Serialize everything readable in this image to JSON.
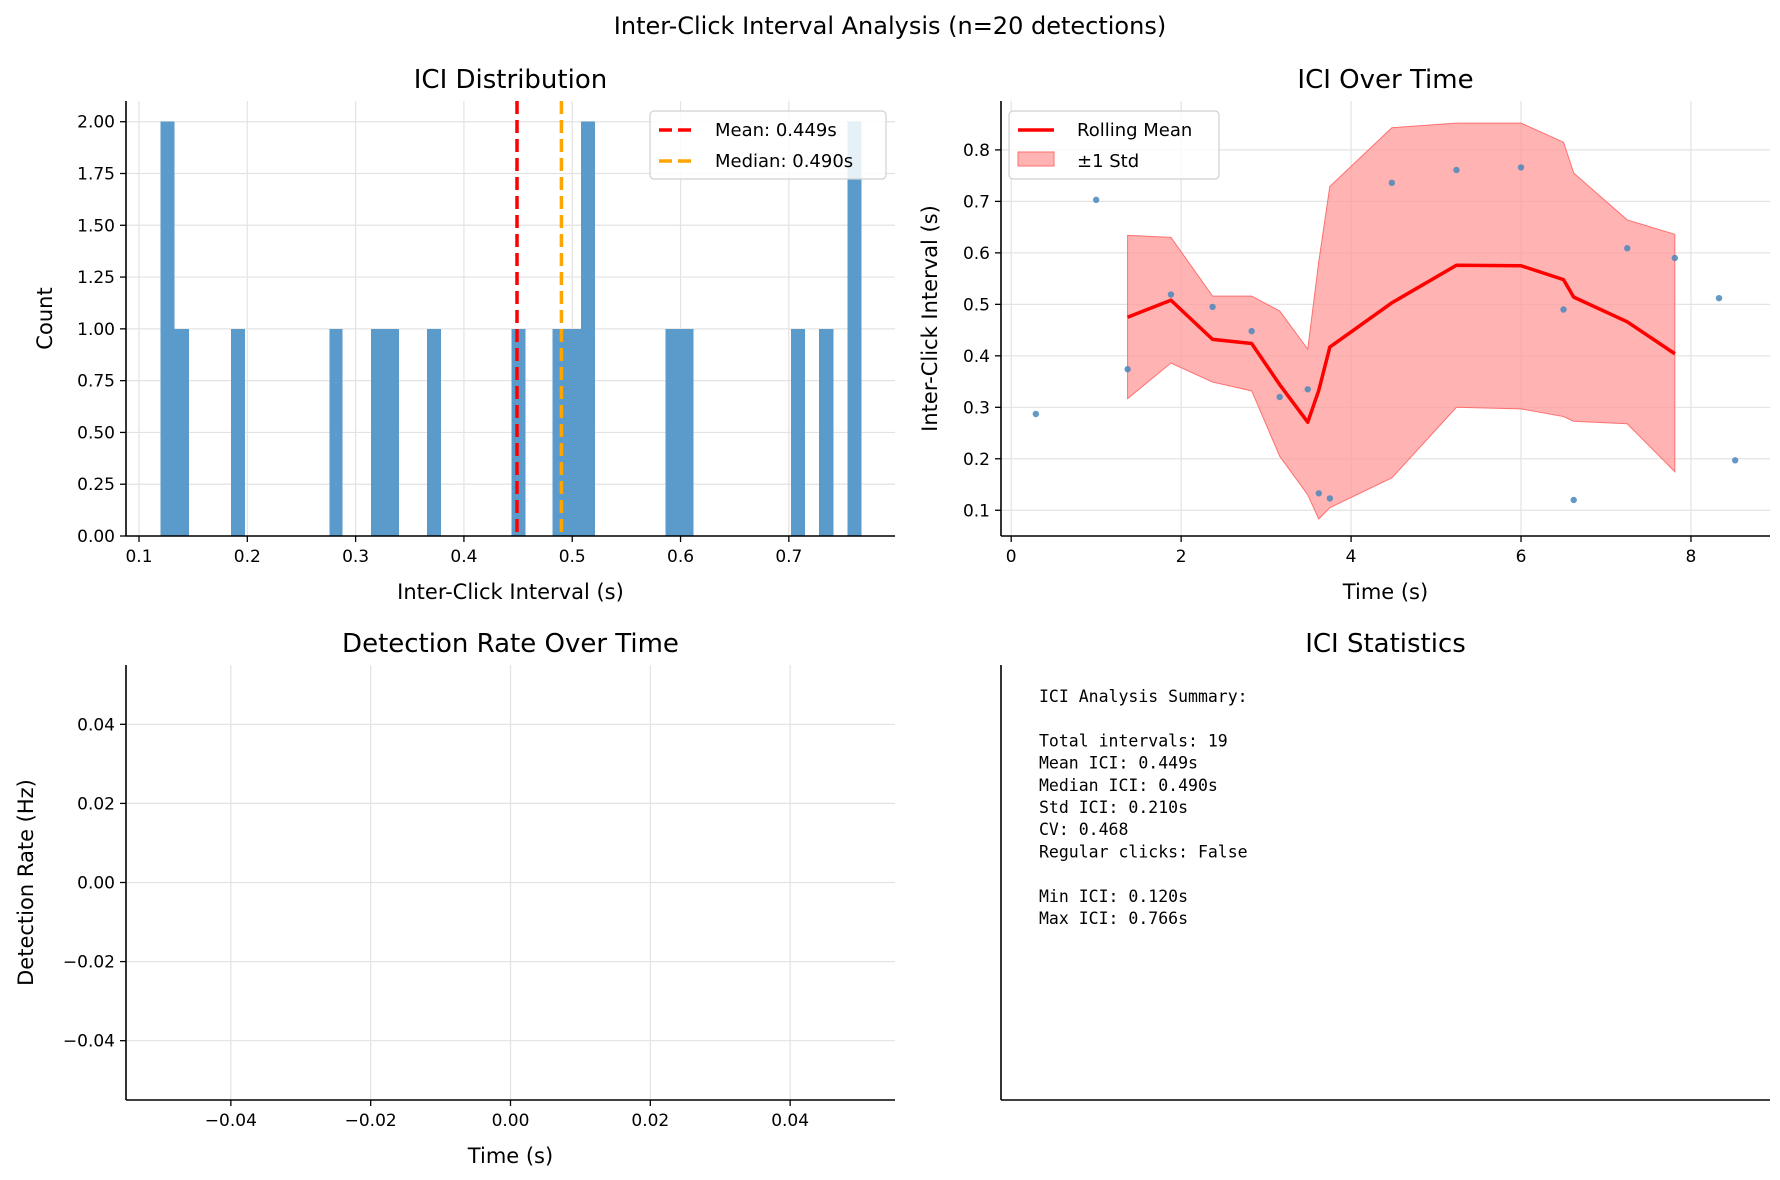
{
  "suptitle": "Inter-Click Interval Analysis (n=20 detections)",
  "chart_data": [
    {
      "type": "bar",
      "title": "ICI Distribution",
      "xlabel": "Inter-Click Interval (s)",
      "ylabel": "Count",
      "xlim": [
        0.088,
        0.798
      ],
      "ylim": [
        0,
        2.1
      ],
      "xticks": [
        0.1,
        0.2,
        0.3,
        0.4,
        0.5,
        0.6,
        0.7
      ],
      "xtick_labels": [
        "0.1",
        "0.2",
        "0.3",
        "0.4",
        "0.5",
        "0.6",
        "0.7"
      ],
      "yticks": [
        0,
        0.25,
        0.5,
        0.75,
        1.0,
        1.25,
        1.5,
        1.75,
        2.0
      ],
      "ytick_labels": [
        "0.00",
        "0.25",
        "0.50",
        "0.75",
        "1.00",
        "1.25",
        "1.50",
        "1.75",
        "2.00"
      ],
      "grid": true,
      "bin_edges": [
        0.12,
        0.133,
        0.146,
        0.159,
        0.172,
        0.185,
        0.198,
        0.211,
        0.224,
        0.237,
        0.25,
        0.263,
        0.276,
        0.288,
        0.301,
        0.314,
        0.327,
        0.34,
        0.353,
        0.366,
        0.379,
        0.392,
        0.405,
        0.418,
        0.431,
        0.444,
        0.457,
        0.469,
        0.482,
        0.495,
        0.508,
        0.521,
        0.534,
        0.547,
        0.56,
        0.573,
        0.586,
        0.599,
        0.612,
        0.625,
        0.637,
        0.65,
        0.663,
        0.676,
        0.689,
        0.702,
        0.715,
        0.728,
        0.741,
        0.754,
        0.767
      ],
      "counts": [
        2,
        1,
        0,
        0,
        0,
        1,
        0,
        0,
        0,
        0,
        0,
        0,
        1,
        0,
        0,
        1,
        1,
        0,
        0,
        1,
        0,
        0,
        0,
        0,
        0,
        1,
        0,
        0,
        1,
        1,
        2,
        0,
        0,
        0,
        0,
        0,
        1,
        1,
        0,
        0,
        0,
        0,
        0,
        0,
        0,
        1,
        0,
        1,
        0,
        2
      ],
      "bar_color": "#5b9bcb",
      "vlines": [
        {
          "label": "Mean: 0.449s",
          "x": 0.449,
          "color": "#ff0000"
        },
        {
          "label": "Median: 0.490s",
          "x": 0.49,
          "color": "#ffa500"
        }
      ],
      "legend_position": "top-right"
    },
    {
      "type": "line",
      "title": "ICI Over Time",
      "xlabel": "Time (s)",
      "ylabel": "Inter-Click Interval (s)",
      "xlim": [
        -0.12,
        8.93
      ],
      "ylim": [
        0.05,
        0.895
      ],
      "xticks": [
        0,
        2,
        4,
        6,
        8
      ],
      "xtick_labels": [
        "0",
        "2",
        "4",
        "6",
        "8"
      ],
      "yticks": [
        0.1,
        0.2,
        0.3,
        0.4,
        0.5,
        0.6,
        0.7,
        0.8
      ],
      "ytick_labels": [
        "0.1",
        "0.2",
        "0.3",
        "0.4",
        "0.5",
        "0.6",
        "0.7",
        "0.8"
      ],
      "grid": true,
      "legend_position": "top-left",
      "series": [
        {
          "kind": "scatter",
          "color": "#4a87bb",
          "points": [
            [
              0.29,
              0.287
            ],
            [
              1.0,
              0.703
            ],
            [
              1.37,
              0.374
            ],
            [
              1.88,
              0.519
            ],
            [
              2.37,
              0.495
            ],
            [
              2.83,
              0.448
            ],
            [
              3.16,
              0.32
            ],
            [
              3.49,
              0.335
            ],
            [
              3.62,
              0.133
            ],
            [
              3.75,
              0.123
            ],
            [
              4.48,
              0.736
            ],
            [
              5.24,
              0.761
            ],
            [
              6.0,
              0.766
            ],
            [
              6.5,
              0.49
            ],
            [
              6.62,
              0.12
            ],
            [
              7.25,
              0.609
            ],
            [
              7.81,
              0.59
            ],
            [
              8.33,
              0.512
            ],
            [
              8.52,
              0.197
            ]
          ]
        },
        {
          "kind": "line",
          "name": "Rolling Mean",
          "color": "#ff0000",
          "points": [
            [
              1.37,
              0.475
            ],
            [
              1.88,
              0.508
            ],
            [
              2.37,
              0.432
            ],
            [
              2.83,
              0.424
            ],
            [
              3.16,
              0.344
            ],
            [
              3.49,
              0.271
            ],
            [
              3.62,
              0.333
            ],
            [
              3.75,
              0.417
            ],
            [
              4.48,
              0.503
            ],
            [
              5.24,
              0.576
            ],
            [
              6.0,
              0.575
            ],
            [
              6.5,
              0.548
            ],
            [
              6.62,
              0.514
            ],
            [
              7.25,
              0.466
            ],
            [
              7.81,
              0.404
            ]
          ]
        },
        {
          "kind": "band",
          "name": "±1 Std",
          "color": "#ff9a9a",
          "upper": [
            [
              1.37,
              0.634
            ],
            [
              1.88,
              0.63
            ],
            [
              2.37,
              0.516
            ],
            [
              2.83,
              0.516
            ],
            [
              3.16,
              0.487
            ],
            [
              3.49,
              0.413
            ],
            [
              3.62,
              0.583
            ],
            [
              3.75,
              0.729
            ],
            [
              4.48,
              0.843
            ],
            [
              5.24,
              0.852
            ],
            [
              6.0,
              0.852
            ],
            [
              6.5,
              0.815
            ],
            [
              6.62,
              0.755
            ],
            [
              7.25,
              0.664
            ],
            [
              7.81,
              0.636
            ]
          ],
          "lower": [
            [
              1.37,
              0.317
            ],
            [
              1.88,
              0.386
            ],
            [
              2.37,
              0.349
            ],
            [
              2.83,
              0.332
            ],
            [
              3.16,
              0.205
            ],
            [
              3.49,
              0.13
            ],
            [
              3.62,
              0.083
            ],
            [
              3.75,
              0.105
            ],
            [
              4.48,
              0.163
            ],
            [
              5.24,
              0.3
            ],
            [
              6.0,
              0.297
            ],
            [
              6.5,
              0.282
            ],
            [
              6.62,
              0.273
            ],
            [
              7.25,
              0.268
            ],
            [
              7.81,
              0.175
            ]
          ]
        }
      ]
    },
    {
      "type": "line",
      "title": "Detection Rate Over Time",
      "xlabel": "Time (s)",
      "ylabel": "Detection Rate (Hz)",
      "xlim": [
        -0.055,
        0.055
      ],
      "ylim": [
        -0.055,
        0.055
      ],
      "xticks": [
        -0.04,
        -0.02,
        0.0,
        0.02,
        0.04
      ],
      "xtick_labels": [
        "−0.04",
        "−0.02",
        "0.00",
        "0.02",
        "0.04"
      ],
      "yticks": [
        -0.04,
        -0.02,
        0.0,
        0.02,
        0.04
      ],
      "ytick_labels": [
        "−0.04",
        "−0.02",
        "0.00",
        "0.02",
        "0.04"
      ],
      "grid": true,
      "series": []
    },
    {
      "type": "table",
      "title": "ICI Statistics",
      "lines": [
        "ICI Analysis Summary:",
        "",
        "Total intervals: 19",
        "Mean ICI: 0.449s",
        "Median ICI: 0.490s",
        "Std ICI: 0.210s",
        "CV: 0.468",
        "Regular clicks: False",
        "",
        "Min ICI: 0.120s",
        "Max ICI: 0.766s"
      ]
    }
  ]
}
